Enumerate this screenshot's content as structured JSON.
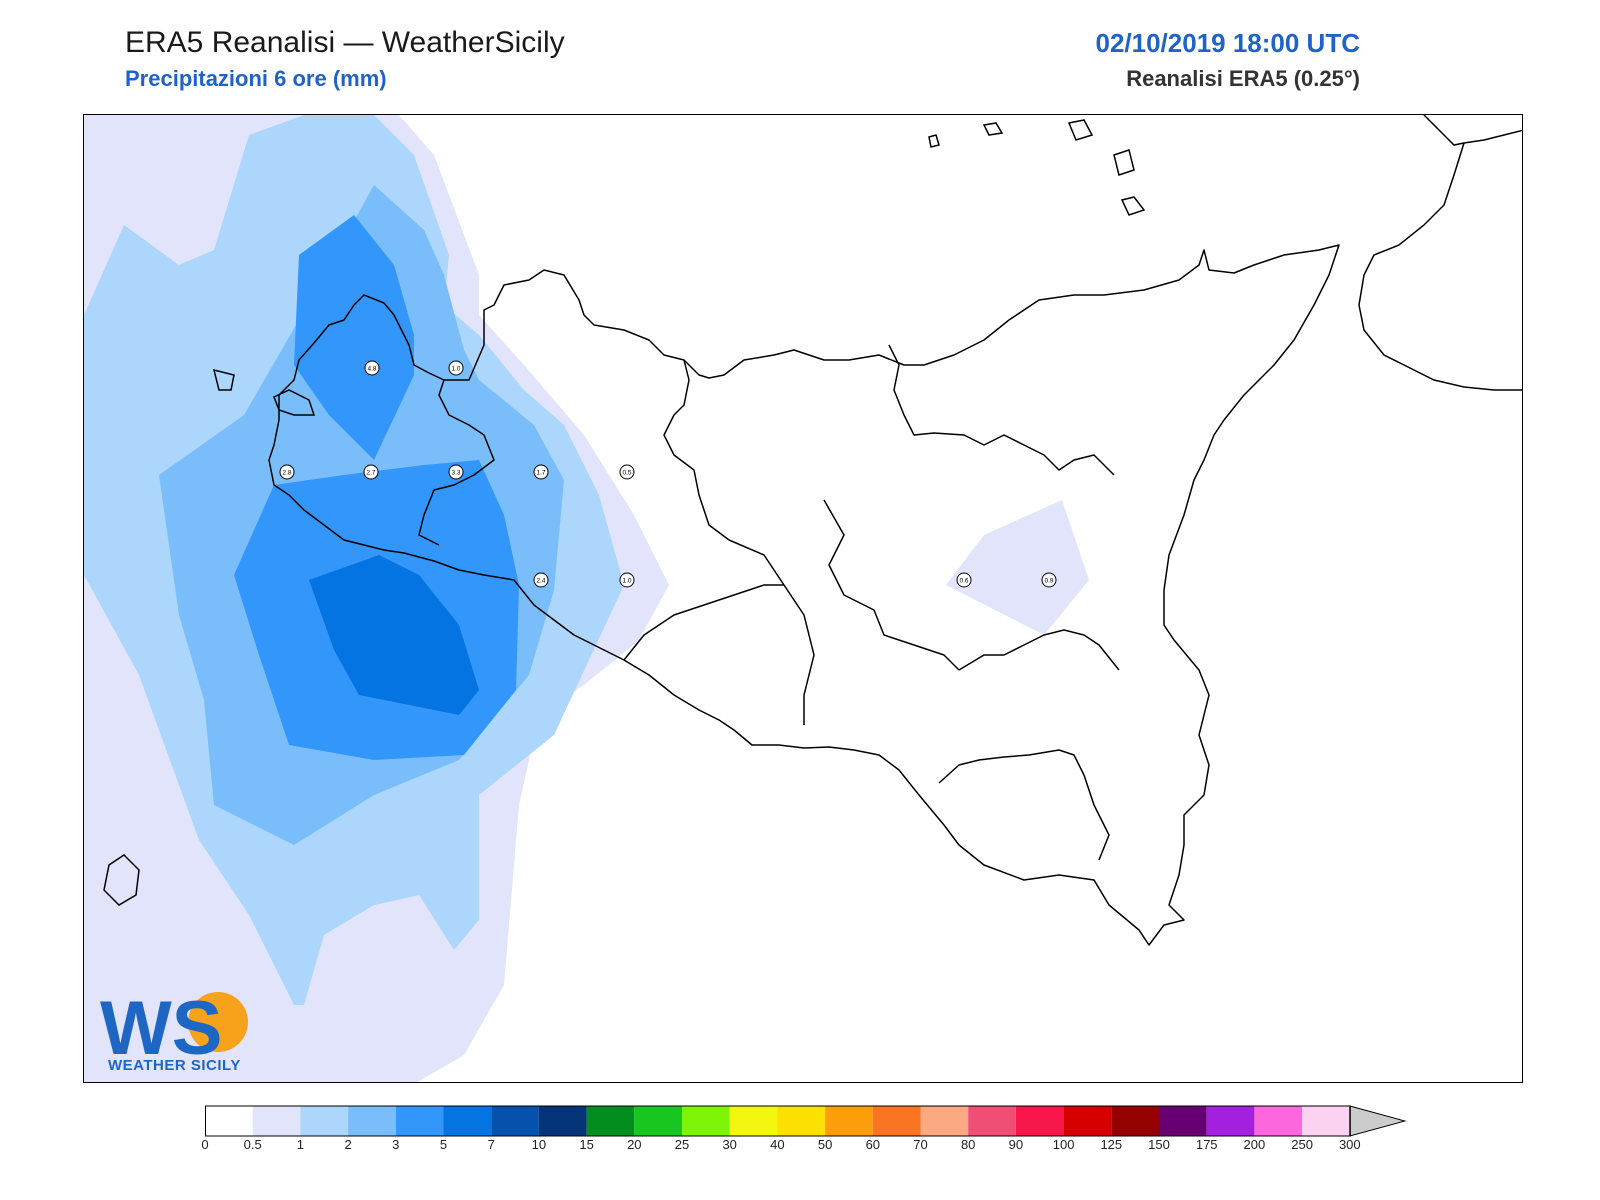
{
  "header": {
    "title": "ERA5 Reanalisi — WeatherSicily",
    "subtitle": "Precipitazioni 6 ore (mm)",
    "datetime": "02/10/2019 18:00 UTC",
    "model": "Reanalisi ERA5 (0.25°)"
  },
  "logo": {
    "text": "WEATHER SICILY",
    "mark": "WS"
  },
  "colorbar": {
    "levels": [
      "0",
      "0.5",
      "1",
      "2",
      "3",
      "5",
      "7",
      "10",
      "15",
      "20",
      "25",
      "30",
      "40",
      "50",
      "60",
      "70",
      "80",
      "90",
      "100",
      "125",
      "150",
      "175",
      "200",
      "250",
      "300"
    ],
    "colors": [
      "#ffffff",
      "#e2e4fb",
      "#acd6fc",
      "#79bdfb",
      "#3396fb",
      "#0574e3",
      "#0651ab",
      "#043378",
      "#028e1e",
      "#17c61f",
      "#7ef406",
      "#f3f60f",
      "#fbe001",
      "#fb9e0a",
      "#fb7422",
      "#fba981",
      "#ef4e75",
      "#f8164b",
      "#d60000",
      "#950000",
      "#660072",
      "#a420df",
      "#fe66dd",
      "#fcd2f3"
    ],
    "extend_color": "#cccccc"
  },
  "station_labels": [
    "4.8",
    "1.0",
    "2.8",
    "2.7",
    "3.3",
    "1.7",
    "0.5",
    "2.4",
    "1.0",
    "0.6",
    "0.9"
  ]
}
